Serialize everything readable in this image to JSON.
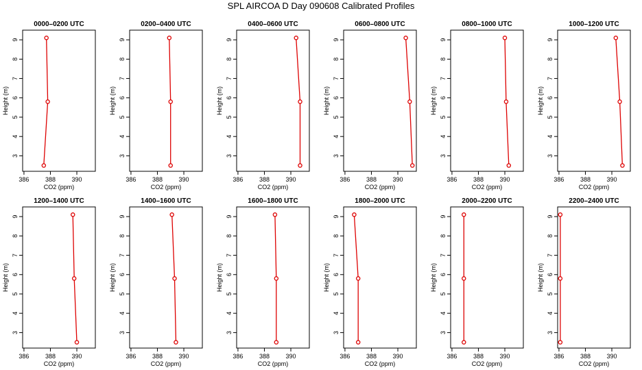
{
  "title": "SPL AIRCOA D  Day 090608  Calibrated Profiles",
  "axes": {
    "xlabel": "CO2 (ppm)",
    "ylabel": "Height (m)"
  },
  "colors": {
    "series": "#dd0000",
    "axis": "#000000"
  },
  "chart_data": [
    {
      "type": "line",
      "title": "0000–0200 UTC",
      "xlim": [
        385.9,
        391.4
      ],
      "ylim": [
        2.2,
        9.5
      ],
      "xticks": [
        386,
        388,
        390
      ],
      "yticks": [
        3,
        4,
        5,
        6,
        7,
        8,
        9
      ],
      "series": [
        {
          "x": [
            387.5,
            387.8,
            387.7
          ],
          "y": [
            2.5,
            5.8,
            9.1
          ]
        }
      ]
    },
    {
      "type": "line",
      "title": "0200–0400 UTC",
      "xlim": [
        385.9,
        391.4
      ],
      "ylim": [
        2.2,
        9.5
      ],
      "xticks": [
        386,
        388,
        390
      ],
      "yticks": [
        3,
        4,
        5,
        6,
        7,
        8,
        9
      ],
      "series": [
        {
          "x": [
            389.0,
            389.0,
            388.9
          ],
          "y": [
            2.5,
            5.8,
            9.1
          ]
        }
      ]
    },
    {
      "type": "line",
      "title": "0400–0600 UTC",
      "xlim": [
        385.9,
        391.4
      ],
      "ylim": [
        2.2,
        9.5
      ],
      "xticks": [
        386,
        388,
        390
      ],
      "yticks": [
        3,
        4,
        5,
        6,
        7,
        8,
        9
      ],
      "series": [
        {
          "x": [
            390.7,
            390.7,
            390.4
          ],
          "y": [
            2.5,
            5.8,
            9.1
          ]
        }
      ]
    },
    {
      "type": "line",
      "title": "0600–0800 UTC",
      "xlim": [
        385.9,
        391.4
      ],
      "ylim": [
        2.2,
        9.5
      ],
      "xticks": [
        386,
        388,
        390
      ],
      "yticks": [
        3,
        4,
        5,
        6,
        7,
        8,
        9
      ],
      "series": [
        {
          "x": [
            391.1,
            390.9,
            390.6
          ],
          "y": [
            2.5,
            5.8,
            9.1
          ]
        }
      ]
    },
    {
      "type": "line",
      "title": "0800–1000 UTC",
      "xlim": [
        385.9,
        391.4
      ],
      "ylim": [
        2.2,
        9.5
      ],
      "xticks": [
        386,
        388,
        390
      ],
      "yticks": [
        3,
        4,
        5,
        6,
        7,
        8,
        9
      ],
      "series": [
        {
          "x": [
            390.3,
            390.1,
            390.0
          ],
          "y": [
            2.5,
            5.8,
            9.1
          ]
        }
      ]
    },
    {
      "type": "line",
      "title": "1000–1200 UTC",
      "xlim": [
        385.9,
        391.4
      ],
      "ylim": [
        2.2,
        9.5
      ],
      "xticks": [
        386,
        388,
        390
      ],
      "yticks": [
        3,
        4,
        5,
        6,
        7,
        8,
        9
      ],
      "series": [
        {
          "x": [
            390.8,
            390.6,
            390.3
          ],
          "y": [
            2.5,
            5.8,
            9.1
          ]
        }
      ]
    },
    {
      "type": "line",
      "title": "1200–1400 UTC",
      "xlim": [
        385.9,
        391.4
      ],
      "ylim": [
        2.2,
        9.5
      ],
      "xticks": [
        386,
        388,
        390
      ],
      "yticks": [
        3,
        4,
        5,
        6,
        7,
        8,
        9
      ],
      "series": [
        {
          "x": [
            390.0,
            389.8,
            389.7
          ],
          "y": [
            2.5,
            5.8,
            9.1
          ]
        }
      ]
    },
    {
      "type": "line",
      "title": "1400–1600 UTC",
      "xlim": [
        385.9,
        391.4
      ],
      "ylim": [
        2.2,
        9.5
      ],
      "xticks": [
        386,
        388,
        390
      ],
      "yticks": [
        3,
        4,
        5,
        6,
        7,
        8,
        9
      ],
      "series": [
        {
          "x": [
            389.4,
            389.3,
            389.1
          ],
          "y": [
            2.5,
            5.8,
            9.1
          ]
        }
      ]
    },
    {
      "type": "line",
      "title": "1600–1800 UTC",
      "xlim": [
        385.9,
        391.4
      ],
      "ylim": [
        2.2,
        9.5
      ],
      "xticks": [
        386,
        388,
        390
      ],
      "yticks": [
        3,
        4,
        5,
        6,
        7,
        8,
        9
      ],
      "series": [
        {
          "x": [
            388.9,
            388.9,
            388.8
          ],
          "y": [
            2.5,
            5.8,
            9.1
          ]
        }
      ]
    },
    {
      "type": "line",
      "title": "1800–2000 UTC",
      "xlim": [
        385.9,
        391.4
      ],
      "ylim": [
        2.2,
        9.5
      ],
      "xticks": [
        386,
        388,
        390
      ],
      "yticks": [
        3,
        4,
        5,
        6,
        7,
        8,
        9
      ],
      "series": [
        {
          "x": [
            387.0,
            387.0,
            386.7
          ],
          "y": [
            2.5,
            5.8,
            9.1
          ]
        }
      ]
    },
    {
      "type": "line",
      "title": "2000–2200 UTC",
      "xlim": [
        385.9,
        391.4
      ],
      "ylim": [
        2.2,
        9.5
      ],
      "xticks": [
        386,
        388,
        390
      ],
      "yticks": [
        3,
        4,
        5,
        6,
        7,
        8,
        9
      ],
      "series": [
        {
          "x": [
            386.9,
            386.9,
            386.9
          ],
          "y": [
            2.5,
            5.8,
            9.1
          ]
        }
      ]
    },
    {
      "type": "line",
      "title": "2200–2400 UTC",
      "xlim": [
        385.9,
        391.4
      ],
      "ylim": [
        2.2,
        9.5
      ],
      "xticks": [
        386,
        388,
        390
      ],
      "yticks": [
        3,
        4,
        5,
        6,
        7,
        8,
        9
      ],
      "series": [
        {
          "x": [
            386.1,
            386.1,
            386.1
          ],
          "y": [
            2.5,
            5.8,
            9.1
          ]
        }
      ]
    }
  ]
}
